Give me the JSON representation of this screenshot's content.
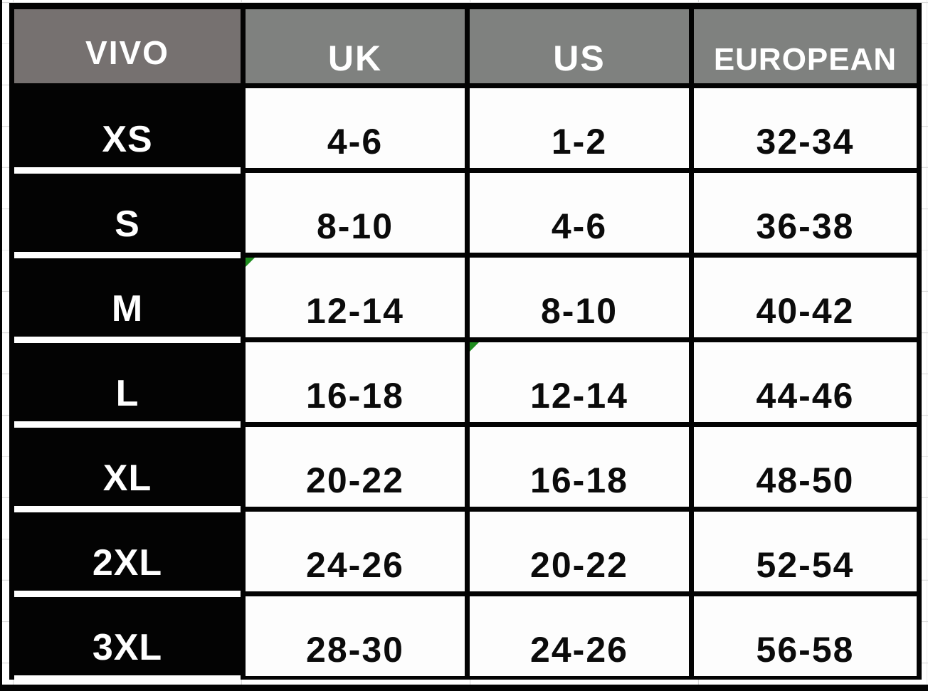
{
  "table": {
    "brand_header": "VIVO",
    "column_headers": [
      "UK",
      "US",
      "EUROPEAN"
    ],
    "rows": [
      {
        "size": "XS",
        "uk": "4-6",
        "us": "1-2",
        "european": "32-34"
      },
      {
        "size": "S",
        "uk": "8-10",
        "us": "4-6",
        "european": "36-38"
      },
      {
        "size": "M",
        "uk": "12-14",
        "us": "8-10",
        "european": "40-42"
      },
      {
        "size": "L",
        "uk": "16-18",
        "us": "12-14",
        "european": "44-46"
      },
      {
        "size": "XL",
        "uk": "20-22",
        "us": "16-18",
        "european": "48-50"
      },
      {
        "size": "2XL",
        "uk": "24-26",
        "us": "20-22",
        "european": "52-54"
      },
      {
        "size": "3XL",
        "uk": "28-30",
        "us": "24-26",
        "european": "56-58"
      }
    ]
  },
  "error_indicators": [
    {
      "row": "M",
      "column": "UK"
    },
    {
      "row": "L",
      "column": "US"
    }
  ],
  "colors": {
    "brand_header_bg": "#767170",
    "column_header_bg": "#7F817F",
    "row_label_bg": "#030303",
    "data_cell_bg": "#FFFFFF",
    "border": "#030303",
    "header_text": "#FFFFFF",
    "data_text": "#0B0B0B",
    "error_indicator": "#1E8C1E",
    "gridline": "#D9D9D9"
  },
  "chart_data": {
    "type": "table",
    "title": "VIVO size conversion chart",
    "columns": [
      "VIVO",
      "UK",
      "US",
      "EUROPEAN"
    ],
    "rows": [
      [
        "XS",
        "4-6",
        "1-2",
        "32-34"
      ],
      [
        "S",
        "8-10",
        "4-6",
        "36-38"
      ],
      [
        "M",
        "12-14",
        "8-10",
        "40-42"
      ],
      [
        "L",
        "16-18",
        "12-14",
        "44-46"
      ],
      [
        "XL",
        "20-22",
        "16-18",
        "48-50"
      ],
      [
        "2XL",
        "24-26",
        "20-22",
        "52-54"
      ],
      [
        "3XL",
        "28-30",
        "24-26",
        "56-58"
      ]
    ]
  }
}
